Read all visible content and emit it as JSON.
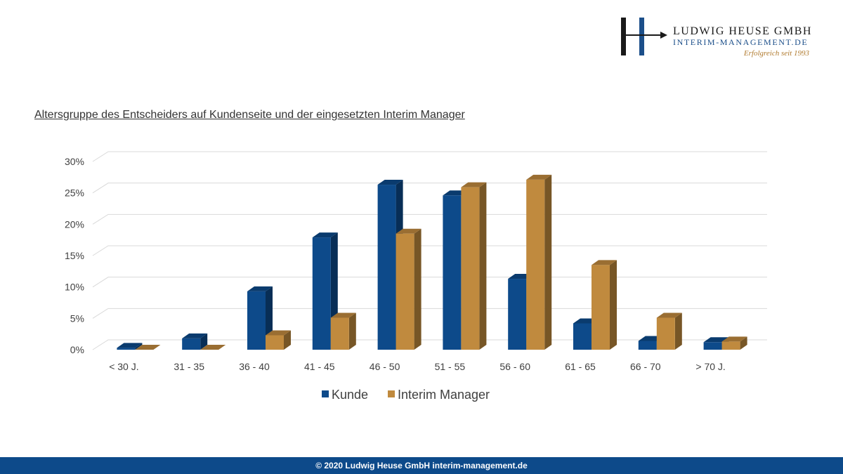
{
  "header": {
    "logo_letters": "H",
    "company_name": "LUDWIG HEUSE GMBH",
    "domain": "INTERIM-MANAGEMENT.DE",
    "tagline": "Erfolgreich seit 1993"
  },
  "footer": {
    "text": "© 2020 Ludwig Heuse GmbH interim-management.de"
  },
  "colors": {
    "kunde": "#0d4a8a",
    "interim_manager": "#c08a3e",
    "footer_bg": "#0d4a8a"
  },
  "chart_data": {
    "type": "bar",
    "title": "Altersgruppe des Entscheiders auf Kundenseite und der eingesetzten Interim Manager",
    "xlabel": "",
    "ylabel": "",
    "categories": [
      "< 30 J.",
      "31 - 35",
      "36 - 40",
      "41 - 45",
      "46 - 50",
      "51 - 55",
      "56 - 60",
      "61 - 65",
      "66 - 70",
      "> 70 J."
    ],
    "series": [
      {
        "name": "Kunde",
        "values": [
          0.3,
          1.8,
          9.3,
          17.9,
          26.3,
          24.6,
          11.3,
          4.2,
          1.4,
          1.2
        ]
      },
      {
        "name": "Interim Manager",
        "values": [
          0.0,
          0.0,
          2.3,
          5.1,
          18.5,
          25.9,
          27.1,
          13.5,
          5.1,
          1.3
        ]
      }
    ],
    "ylim": [
      0,
      30
    ],
    "yticks": [
      "0%",
      "5%",
      "10%",
      "15%",
      "20%",
      "25%",
      "30%"
    ],
    "grid": true,
    "legend_position": "bottom"
  }
}
